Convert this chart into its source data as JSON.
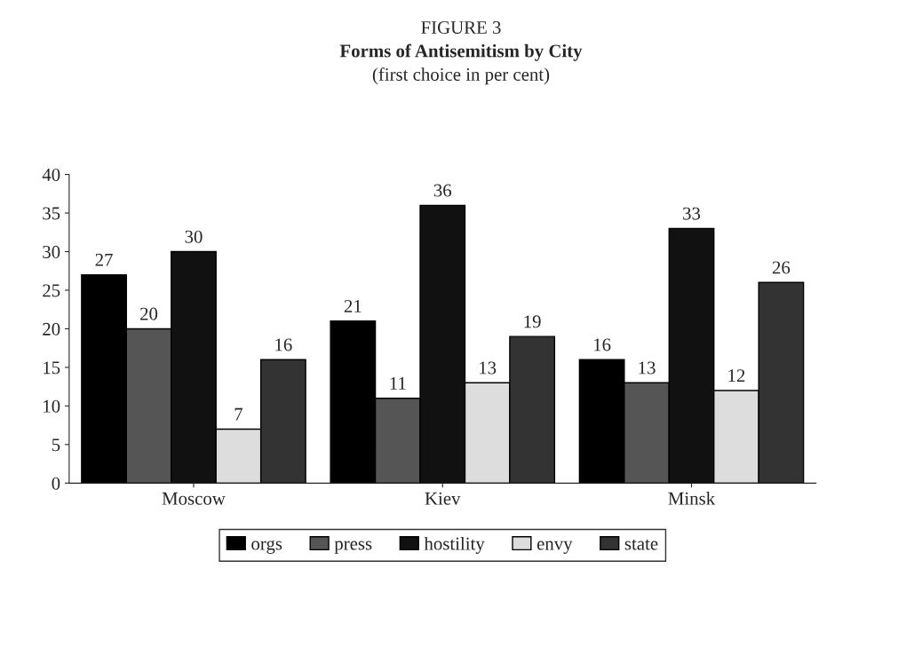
{
  "chart_data": {
    "type": "bar",
    "title": "FIGURE 3",
    "subtitle": "Forms of Antisemitism by City",
    "annotations": [
      "(first choice in per cent)"
    ],
    "categories": [
      "Moscow",
      "Kiev",
      "Minsk"
    ],
    "series": [
      {
        "name": "orgs",
        "color": "#000000",
        "values": [
          27,
          21,
          16
        ]
      },
      {
        "name": "press",
        "color": "#555555",
        "values": [
          20,
          11,
          13
        ]
      },
      {
        "name": "hostility",
        "color": "#111111",
        "values": [
          30,
          36,
          33
        ]
      },
      {
        "name": "envy",
        "color": "#dddddd",
        "values": [
          7,
          13,
          12
        ]
      },
      {
        "name": "state",
        "color": "#333333",
        "values": [
          16,
          19,
          26
        ]
      }
    ],
    "ylim": [
      0,
      40
    ],
    "yticks": [
      0,
      5,
      10,
      15,
      20,
      25,
      30,
      35,
      40
    ],
    "grid": false,
    "legend": "bottom",
    "data_labels": true
  }
}
